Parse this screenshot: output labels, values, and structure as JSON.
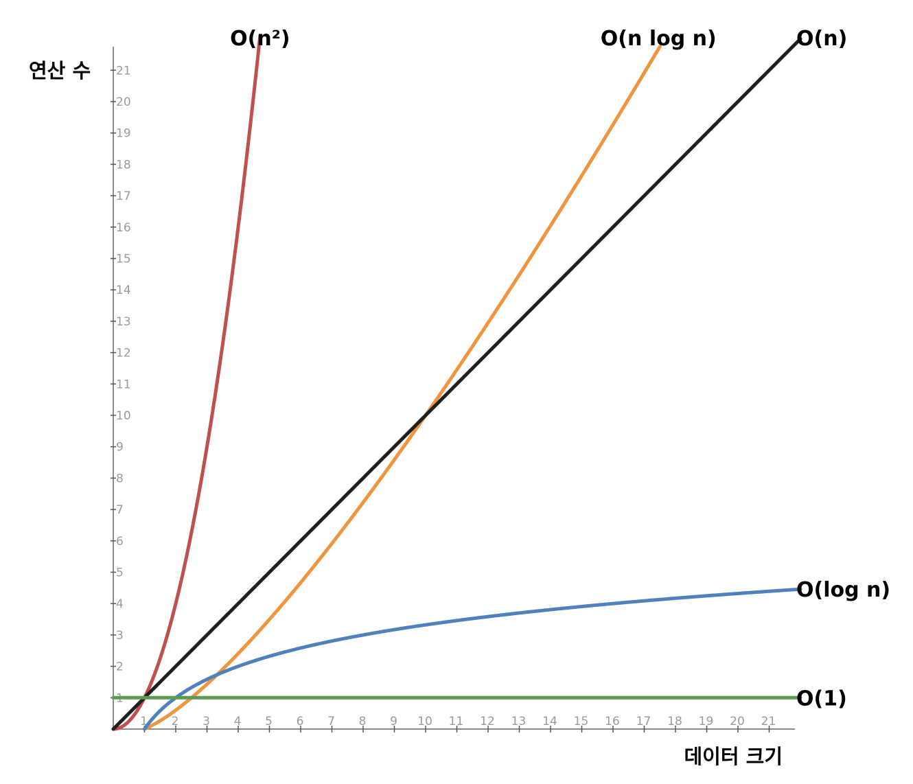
{
  "chart_data": {
    "type": "line",
    "title": "",
    "xlabel": "데이터 크기",
    "ylabel": "연산 수",
    "xlim": [
      0,
      22
    ],
    "ylim": [
      0,
      22
    ],
    "x_ticks": [
      "1",
      "2",
      "3",
      "4",
      "5",
      "6",
      "7",
      "8",
      "9",
      "10",
      "11",
      "12",
      "13",
      "14",
      "15",
      "16",
      "17",
      "18",
      "19",
      "20",
      "21"
    ],
    "y_ticks": [
      "1",
      "2",
      "3",
      "4",
      "5",
      "6",
      "7",
      "8",
      "9",
      "10",
      "11",
      "12",
      "13",
      "14",
      "15",
      "16",
      "17",
      "18",
      "19",
      "20",
      "21"
    ],
    "grid": false,
    "series": [
      {
        "name": "O(n²)",
        "function": "n^2",
        "color": "#c0504d",
        "x": [
          0,
          0.5,
          1,
          1.5,
          2,
          2.5,
          3,
          3.5,
          4,
          4.5,
          4.7
        ],
        "y": [
          0,
          0.25,
          1,
          2.25,
          4,
          6.25,
          9,
          12.25,
          16,
          20.25,
          22
        ]
      },
      {
        "name": "O(n log n)",
        "function": "n*log10(n)",
        "color": "#f0953f",
        "x": [
          1,
          2,
          3,
          4,
          5,
          6,
          8,
          10,
          12,
          14,
          16,
          17.5
        ],
        "y": [
          0,
          0.6,
          1.43,
          2.41,
          3.49,
          4.67,
          7.22,
          10,
          12.95,
          16.05,
          19.27,
          21.75
        ]
      },
      {
        "name": "O(n)",
        "function": "n",
        "color": "#1f1f1f",
        "x": [
          0,
          22
        ],
        "y": [
          0,
          22
        ]
      },
      {
        "name": "O(log n)",
        "function": "log2(n)",
        "color": "#4f81bd",
        "x": [
          1,
          2,
          3,
          4,
          6,
          8,
          10,
          12,
          14,
          16,
          18,
          20,
          22
        ],
        "y": [
          0,
          1,
          1.58,
          2,
          2.58,
          3,
          3.32,
          3.58,
          3.81,
          4,
          4.17,
          4.32,
          4.46
        ]
      },
      {
        "name": "O(1)",
        "function": "1",
        "color": "#5a9a52",
        "x": [
          0,
          22
        ],
        "y": [
          1,
          1
        ]
      }
    ]
  }
}
